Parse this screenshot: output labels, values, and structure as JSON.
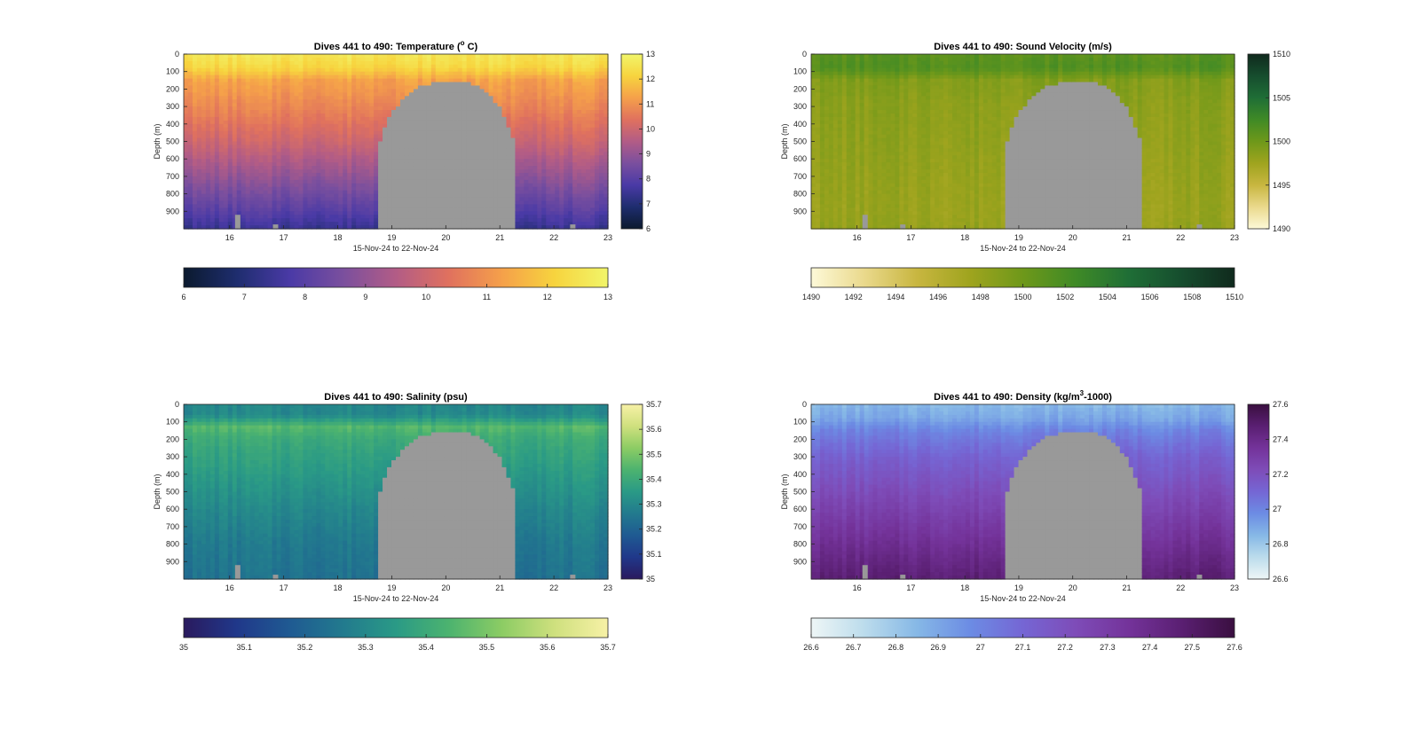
{
  "figure": {
    "background": "#ffffff"
  },
  "chart_data": [
    {
      "id": "temperature",
      "type": "heatmap",
      "title_main": "Dives 441 to 490: Temperature (",
      "title_sup": "o",
      "title_end": " C)",
      "xlabel": "15-Nov-24 to 22-Nov-24",
      "ylabel": "Depth (m)",
      "xlim": [
        15.15,
        23
      ],
      "ylim": [
        1000,
        0
      ],
      "xticks": [
        16,
        17,
        18,
        19,
        20,
        21,
        22,
        23
      ],
      "xtick_labels": [
        "16",
        "17",
        "18",
        "19",
        "20",
        "21",
        "22",
        "23"
      ],
      "yticks": [
        0,
        100,
        200,
        300,
        400,
        500,
        600,
        700,
        800,
        900
      ],
      "ytick_labels": [
        "0",
        "100",
        "200",
        "300",
        "400",
        "500",
        "600",
        "700",
        "800",
        "900"
      ],
      "clim": [
        6,
        13
      ],
      "colorbar_ticks": [
        6,
        7,
        8,
        9,
        10,
        11,
        12,
        13
      ],
      "colorbar_tick_labels": [
        "6",
        "7",
        "8",
        "9",
        "10",
        "11",
        "12",
        "13"
      ],
      "colormap": [
        "#0b1a2e",
        "#1e2d6e",
        "#4a3aa6",
        "#7a4f9e",
        "#b25c86",
        "#e0715e",
        "#f5a04a",
        "#f7d43e",
        "#f1f56a"
      ],
      "profile": [
        [
          0,
          12.6
        ],
        [
          80,
          12.2
        ],
        [
          150,
          11.3
        ],
        [
          300,
          10.8
        ],
        [
          500,
          10.0
        ],
        [
          700,
          9.0
        ],
        [
          900,
          8.0
        ],
        [
          1000,
          7.4
        ]
      ],
      "no_data_color": "#999999",
      "grid": false
    },
    {
      "id": "sound-velocity",
      "type": "heatmap",
      "title_main": "Dives 441 to 490: Sound Velocity (m/s)",
      "title_sup": "",
      "title_end": "",
      "xlabel": "15-Nov-24 to 22-Nov-24",
      "ylabel": "Depth (m)",
      "xlim": [
        15.15,
        23
      ],
      "ylim": [
        1000,
        0
      ],
      "xticks": [
        16,
        17,
        18,
        19,
        20,
        21,
        22,
        23
      ],
      "xtick_labels": [
        "16",
        "17",
        "18",
        "19",
        "20",
        "21",
        "22",
        "23"
      ],
      "yticks": [
        0,
        100,
        200,
        300,
        400,
        500,
        600,
        700,
        800,
        900
      ],
      "ytick_labels": [
        "0",
        "100",
        "200",
        "300",
        "400",
        "500",
        "600",
        "700",
        "800",
        "900"
      ],
      "clim": [
        1490,
        1510
      ],
      "colorbar_ticks": [
        1490,
        1492,
        1494,
        1496,
        1498,
        1500,
        1502,
        1504,
        1506,
        1508,
        1510
      ],
      "colorbar_tick_labels": [
        "1490",
        "1492",
        "1494",
        "1496",
        "1498",
        "1500",
        "1502",
        "1504",
        "1506",
        "1508",
        "1510"
      ],
      "side_colorbar_ticks": [
        1490,
        1495,
        1500,
        1505,
        1510
      ],
      "side_colorbar_tick_labels": [
        "1490",
        "1495",
        "1500",
        "1505",
        "1510"
      ],
      "colormap": [
        "#fdf9d8",
        "#ead98c",
        "#c8b640",
        "#9fa41e",
        "#6e981a",
        "#3f8a26",
        "#1f6e36",
        "#164d2e",
        "#102a1d"
      ],
      "profile": [
        [
          0,
          1501.0
        ],
        [
          80,
          1501.5
        ],
        [
          150,
          1499.0
        ],
        [
          300,
          1498.5
        ],
        [
          500,
          1498.3
        ],
        [
          700,
          1498.0
        ],
        [
          900,
          1497.8
        ],
        [
          1000,
          1498.0
        ]
      ],
      "no_data_color": "#999999",
      "grid": false
    },
    {
      "id": "salinity",
      "type": "heatmap",
      "title_main": "Dives 441 to 490: Salinity (psu)",
      "title_sup": "",
      "title_end": "",
      "xlabel": "15-Nov-24 to 22-Nov-24",
      "ylabel": "Depth (m)",
      "xlim": [
        15.15,
        23
      ],
      "ylim": [
        1000,
        0
      ],
      "xticks": [
        16,
        17,
        18,
        19,
        20,
        21,
        22,
        23
      ],
      "xtick_labels": [
        "16",
        "17",
        "18",
        "19",
        "20",
        "21",
        "22",
        "23"
      ],
      "yticks": [
        0,
        100,
        200,
        300,
        400,
        500,
        600,
        700,
        800,
        900
      ],
      "ytick_labels": [
        "0",
        "100",
        "200",
        "300",
        "400",
        "500",
        "600",
        "700",
        "800",
        "900"
      ],
      "clim": [
        35,
        35.7
      ],
      "colorbar_ticks": [
        35,
        35.1,
        35.2,
        35.3,
        35.4,
        35.5,
        35.6,
        35.7
      ],
      "colorbar_tick_labels": [
        "35",
        "35.1",
        "35.2",
        "35.3",
        "35.4",
        "35.5",
        "35.6",
        "35.7"
      ],
      "colormap": [
        "#2a1a5e",
        "#20388a",
        "#1f5a92",
        "#227a8e",
        "#2a9a86",
        "#4cb36f",
        "#8ccc64",
        "#cfe07e",
        "#f7f1a6"
      ],
      "profile": [
        [
          0,
          35.3
        ],
        [
          60,
          35.3
        ],
        [
          130,
          35.45
        ],
        [
          200,
          35.4
        ],
        [
          400,
          35.35
        ],
        [
          600,
          35.3
        ],
        [
          800,
          35.26
        ],
        [
          1000,
          35.24
        ]
      ],
      "no_data_color": "#999999",
      "grid": false
    },
    {
      "id": "density",
      "type": "heatmap",
      "title_main": "Dives 441 to 490: Density (kg/m",
      "title_sup": "3",
      "title_end": "-1000)",
      "xlabel": "15-Nov-24 to 22-Nov-24",
      "ylabel": "Depth (m)",
      "xlim": [
        15.15,
        23
      ],
      "ylim": [
        1000,
        0
      ],
      "xticks": [
        16,
        17,
        18,
        19,
        20,
        21,
        22,
        23
      ],
      "xtick_labels": [
        "16",
        "17",
        "18",
        "19",
        "20",
        "21",
        "22",
        "23"
      ],
      "yticks": [
        0,
        100,
        200,
        300,
        400,
        500,
        600,
        700,
        800,
        900
      ],
      "ytick_labels": [
        "0",
        "100",
        "200",
        "300",
        "400",
        "500",
        "600",
        "700",
        "800",
        "900"
      ],
      "clim": [
        26.6,
        27.6
      ],
      "colorbar_ticks": [
        26.6,
        26.7,
        26.8,
        26.9,
        27,
        27.1,
        27.2,
        27.3,
        27.4,
        27.5,
        27.6
      ],
      "colorbar_tick_labels": [
        "26.6",
        "26.7",
        "26.8",
        "26.9",
        "27",
        "27.1",
        "27.2",
        "27.3",
        "27.4",
        "27.5",
        "27.6"
      ],
      "side_colorbar_ticks": [
        26.6,
        26.8,
        27,
        27.2,
        27.4,
        27.6
      ],
      "side_colorbar_tick_labels": [
        "26.6",
        "26.8",
        "27",
        "27.2",
        "27.4",
        "27.6"
      ],
      "colormap": [
        "#eef6f6",
        "#bcdcec",
        "#86b8e6",
        "#6c8ce4",
        "#7566d4",
        "#7e4cb8",
        "#74339a",
        "#5a1f72",
        "#3a0f40"
      ],
      "profile": [
        [
          0,
          26.85
        ],
        [
          80,
          26.9
        ],
        [
          150,
          27.0
        ],
        [
          300,
          27.12
        ],
        [
          500,
          27.22
        ],
        [
          700,
          27.32
        ],
        [
          900,
          27.42
        ],
        [
          1000,
          27.47
        ]
      ],
      "no_data_color": "#999999",
      "grid": false
    }
  ]
}
